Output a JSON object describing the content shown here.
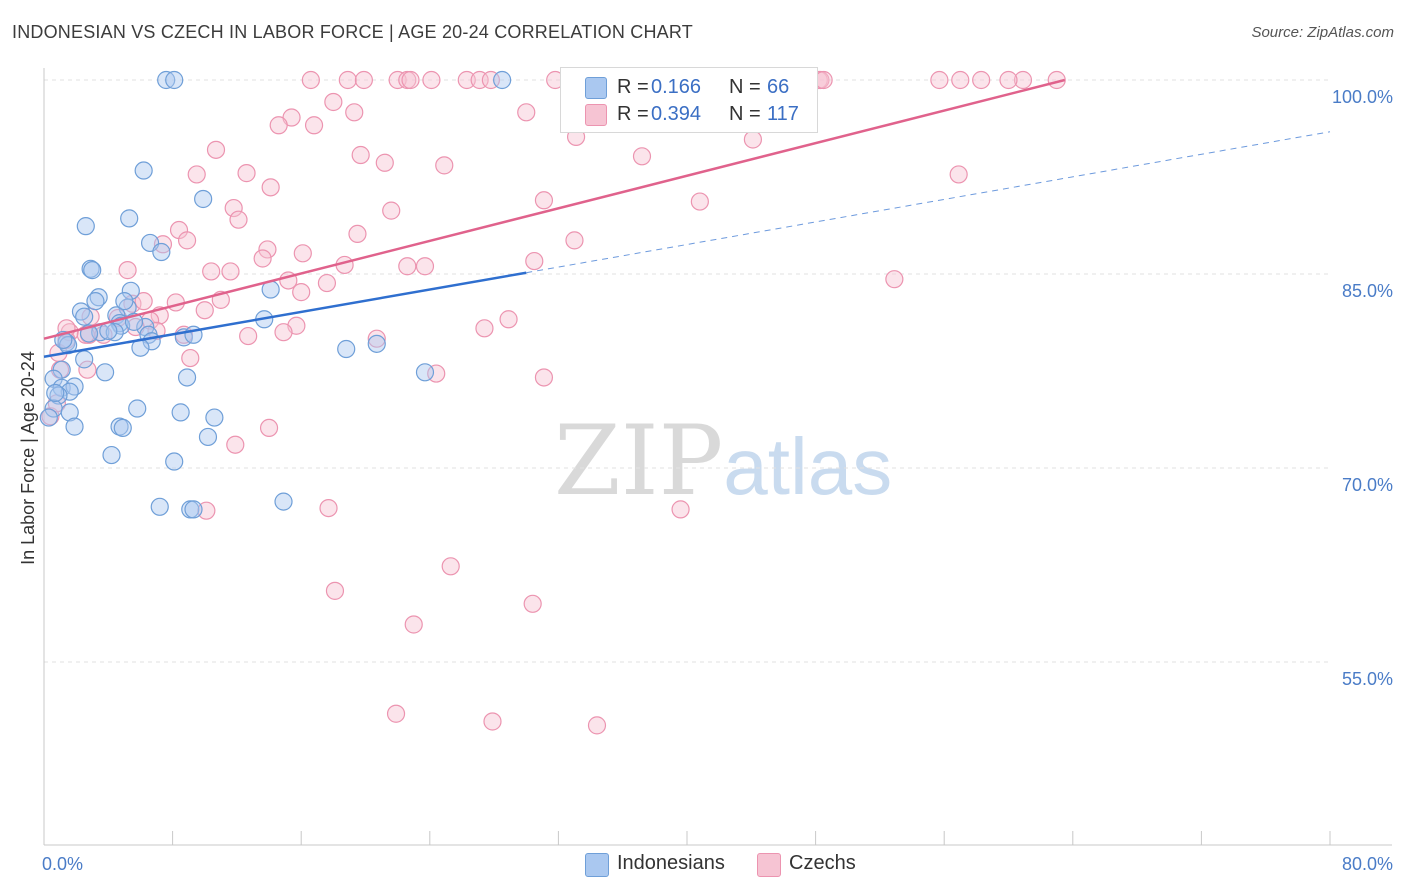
{
  "title": "INDONESIAN VS CZECH IN LABOR FORCE | AGE 20-24 CORRELATION CHART",
  "source": "Source: ZipAtlas.com",
  "watermark": {
    "zip": "ZIP",
    "atlas": "atlas"
  },
  "colors": {
    "indonesians_fill": "#aac8f0",
    "indonesians_stroke": "#6f9fd8",
    "indonesians_line": "#2f6fcf",
    "czechs_fill": "#f6c4d3",
    "czechs_stroke": "#ec94b0",
    "czechs_line": "#e0628c",
    "axis_text": "#4a7cc7",
    "grid": "#e2e2e2"
  },
  "legend": {
    "rows": [
      {
        "r_label": "R =",
        "r_value": "0.166",
        "n_label": "N =",
        "n_value": "66"
      },
      {
        "r_label": "R =",
        "r_value": "0.394",
        "n_label": "N =",
        "n_value": "117"
      }
    ],
    "bottom": [
      "Indonesians",
      "Czechs"
    ]
  },
  "chart_data": {
    "type": "scatter",
    "title": "INDONESIAN VS CZECH IN LABOR FORCE | AGE 20-24 CORRELATION CHART",
    "xlabel": "",
    "ylabel": "In Labor Force | Age 20-24",
    "xlim": [
      0,
      80
    ],
    "ylim": [
      40,
      102
    ],
    "x_tick_labels": [
      {
        "value": 0,
        "label": "0.0%"
      },
      {
        "value": 80,
        "label": "80.0%"
      }
    ],
    "y_tick_labels": [
      {
        "value": 100,
        "label": "100.0%"
      },
      {
        "value": 85,
        "label": "85.0%"
      },
      {
        "value": 70,
        "label": "70.0%"
      },
      {
        "value": 55,
        "label": "55.0%"
      }
    ],
    "series": [
      {
        "name": "Indonesians",
        "r": 0.166,
        "n": 66,
        "trend": {
          "x_start": 0,
          "y_start": 78.6,
          "x_end": 30,
          "y_end": 85.1,
          "dashed_to_x": 80,
          "dashed_to_y": 96.0
        },
        "points": [
          [
            7.6,
            100
          ],
          [
            8.1,
            100
          ],
          [
            28.5,
            100
          ],
          [
            6.2,
            93.0
          ],
          [
            9.9,
            90.8
          ],
          [
            5.3,
            89.3
          ],
          [
            2.6,
            88.7
          ],
          [
            6.6,
            87.4
          ],
          [
            7.3,
            86.7
          ],
          [
            2.9,
            85.4
          ],
          [
            3.0,
            85.3
          ],
          [
            14.1,
            83.8
          ],
          [
            5.4,
            83.7
          ],
          [
            3.4,
            83.2
          ],
          [
            2.3,
            82.1
          ],
          [
            5.2,
            82.4
          ],
          [
            2.5,
            81.7
          ],
          [
            4.5,
            81.8
          ],
          [
            13.7,
            81.5
          ],
          [
            4.7,
            81.2
          ],
          [
            4.8,
            81.0
          ],
          [
            6.3,
            80.9
          ],
          [
            3.5,
            80.5
          ],
          [
            4.4,
            80.5
          ],
          [
            6.5,
            80.3
          ],
          [
            8.7,
            80.1
          ],
          [
            1.4,
            79.7
          ],
          [
            6.7,
            79.8
          ],
          [
            1.5,
            79.5
          ],
          [
            6.0,
            79.3
          ],
          [
            18.8,
            79.2
          ],
          [
            20.7,
            79.6
          ],
          [
            2.5,
            78.4
          ],
          [
            1.1,
            77.6
          ],
          [
            3.8,
            77.4
          ],
          [
            8.9,
            77.0
          ],
          [
            23.7,
            77.4
          ],
          [
            0.6,
            76.9
          ],
          [
            1.1,
            76.2
          ],
          [
            1.9,
            76.3
          ],
          [
            1.6,
            75.9
          ],
          [
            0.9,
            75.6
          ],
          [
            5.8,
            74.6
          ],
          [
            0.6,
            74.6
          ],
          [
            8.5,
            74.3
          ],
          [
            1.6,
            74.3
          ],
          [
            10.6,
            73.9
          ],
          [
            0.3,
            73.9
          ],
          [
            1.9,
            73.2
          ],
          [
            4.7,
            73.2
          ],
          [
            4.9,
            73.1
          ],
          [
            10.2,
            72.4
          ],
          [
            4.2,
            71.0
          ],
          [
            8.1,
            70.5
          ],
          [
            14.9,
            67.4
          ],
          [
            7.2,
            67.0
          ],
          [
            9.1,
            66.8
          ],
          [
            9.3,
            66.8
          ],
          [
            0.7,
            75.8
          ],
          [
            2.8,
            80.4
          ],
          [
            4.0,
            80.6
          ],
          [
            5.6,
            81.3
          ],
          [
            3.2,
            82.9
          ],
          [
            5.0,
            82.9
          ],
          [
            9.3,
            80.3
          ],
          [
            1.2,
            79.9
          ]
        ]
      },
      {
        "name": "Czechs",
        "r": 0.394,
        "n": 117,
        "trend": {
          "x_start": 0,
          "y_start": 80.0,
          "x_end": 63.5,
          "y_end": 100
        },
        "points": [
          [
            16.6,
            100
          ],
          [
            18.9,
            100
          ],
          [
            19.9,
            100
          ],
          [
            22.0,
            100
          ],
          [
            22.6,
            100
          ],
          [
            22.8,
            100
          ],
          [
            24.1,
            100
          ],
          [
            26.3,
            100
          ],
          [
            27.1,
            100
          ],
          [
            27.8,
            100
          ],
          [
            31.8,
            100
          ],
          [
            33.2,
            100
          ],
          [
            35.9,
            100
          ],
          [
            38.4,
            100
          ],
          [
            38.8,
            100
          ],
          [
            40.2,
            100
          ],
          [
            40.9,
            100
          ],
          [
            41.8,
            100
          ],
          [
            43.8,
            100
          ],
          [
            48.2,
            100
          ],
          [
            48.3,
            100
          ],
          [
            48.5,
            100
          ],
          [
            55.7,
            100
          ],
          [
            57.0,
            100
          ],
          [
            58.3,
            100
          ],
          [
            63.0,
            100
          ],
          [
            60.9,
            100
          ],
          [
            60.0,
            100
          ],
          [
            40.6,
            100
          ],
          [
            45.4,
            100
          ],
          [
            47.1,
            100
          ],
          [
            18.0,
            98.3
          ],
          [
            19.3,
            97.5
          ],
          [
            30.0,
            97.5
          ],
          [
            33.8,
            97.8
          ],
          [
            15.4,
            97.1
          ],
          [
            14.6,
            96.5
          ],
          [
            16.8,
            96.5
          ],
          [
            33.1,
            95.6
          ],
          [
            44.1,
            95.4
          ],
          [
            10.7,
            94.6
          ],
          [
            19.7,
            94.2
          ],
          [
            37.2,
            94.1
          ],
          [
            21.2,
            93.6
          ],
          [
            24.9,
            93.4
          ],
          [
            12.6,
            92.8
          ],
          [
            56.9,
            92.7
          ],
          [
            9.5,
            92.7
          ],
          [
            14.1,
            91.7
          ],
          [
            31.1,
            90.7
          ],
          [
            40.8,
            90.6
          ],
          [
            11.8,
            90.1
          ],
          [
            21.6,
            89.9
          ],
          [
            12.1,
            89.2
          ],
          [
            8.4,
            88.4
          ],
          [
            19.5,
            88.1
          ],
          [
            8.9,
            87.6
          ],
          [
            33.0,
            87.6
          ],
          [
            7.4,
            87.3
          ],
          [
            13.9,
            86.9
          ],
          [
            16.1,
            86.6
          ],
          [
            13.6,
            86.2
          ],
          [
            30.5,
            86.0
          ],
          [
            18.7,
            85.7
          ],
          [
            22.6,
            85.6
          ],
          [
            23.7,
            85.6
          ],
          [
            5.2,
            85.3
          ],
          [
            10.4,
            85.2
          ],
          [
            11.6,
            85.2
          ],
          [
            15.2,
            84.5
          ],
          [
            17.6,
            84.3
          ],
          [
            52.9,
            84.6
          ],
          [
            16.0,
            83.6
          ],
          [
            11.0,
            83.0
          ],
          [
            8.2,
            82.8
          ],
          [
            5.5,
            82.7
          ],
          [
            10.0,
            82.2
          ],
          [
            7.2,
            81.8
          ],
          [
            2.9,
            81.7
          ],
          [
            28.9,
            81.5
          ],
          [
            15.7,
            81.0
          ],
          [
            6.6,
            81.4
          ],
          [
            27.4,
            80.8
          ],
          [
            7.0,
            80.6
          ],
          [
            8.7,
            80.3
          ],
          [
            5.7,
            80.9
          ],
          [
            2.8,
            80.3
          ],
          [
            3.7,
            80.3
          ],
          [
            12.7,
            80.2
          ],
          [
            14.9,
            80.5
          ],
          [
            20.7,
            80.0
          ],
          [
            1.6,
            80.5
          ],
          [
            2.6,
            80.3
          ],
          [
            1.4,
            79.9
          ],
          [
            0.9,
            78.9
          ],
          [
            9.1,
            78.5
          ],
          [
            1.0,
            77.6
          ],
          [
            2.7,
            77.6
          ],
          [
            31.1,
            77.0
          ],
          [
            24.4,
            77.3
          ],
          [
            14.0,
            73.1
          ],
          [
            11.9,
            71.8
          ],
          [
            0.4,
            74.0
          ],
          [
            0.8,
            75.0
          ],
          [
            10.1,
            66.7
          ],
          [
            17.7,
            66.9
          ],
          [
            39.6,
            66.8
          ],
          [
            25.3,
            62.4
          ],
          [
            18.1,
            60.5
          ],
          [
            30.4,
            59.5
          ],
          [
            23.0,
            57.9
          ],
          [
            21.9,
            51.0
          ],
          [
            27.9,
            50.4
          ],
          [
            34.4,
            50.1
          ],
          [
            1.4,
            80.8
          ],
          [
            6.2,
            82.9
          ],
          [
            4.6,
            81.6
          ]
        ]
      }
    ]
  }
}
